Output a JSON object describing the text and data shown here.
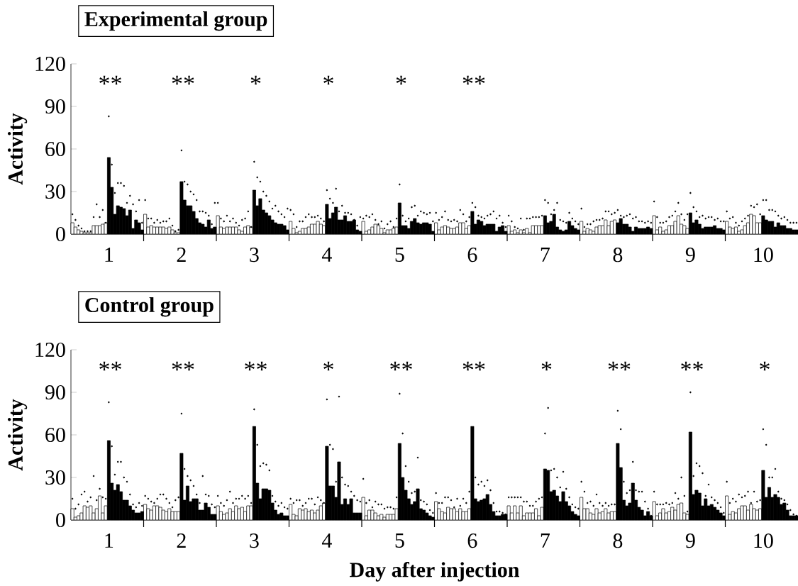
{
  "chart_data": [
    {
      "type": "bar",
      "title": "Experimental group",
      "ylabel": "Activity",
      "categories": [
        null,
        null,
        null,
        null,
        null,
        null,
        null,
        null,
        null,
        null,
        null,
        null,
        "1",
        null,
        null,
        null,
        null,
        null,
        null,
        null,
        null,
        null,
        null,
        null,
        null,
        null,
        null,
        null,
        null,
        null,
        null,
        null,
        null,
        null,
        null,
        null,
        "2",
        null,
        null,
        null,
        null,
        null,
        null,
        null,
        null,
        null,
        null,
        null,
        null,
        null,
        null,
        null,
        null,
        null,
        null,
        null,
        null,
        null,
        null,
        null,
        "3",
        null,
        null,
        null,
        null,
        null,
        null,
        null,
        null,
        null,
        null,
        null,
        null,
        null,
        null,
        null,
        null,
        null,
        null,
        null,
        null,
        null,
        null,
        null,
        "4",
        null,
        null,
        null,
        null,
        null,
        null,
        null,
        null,
        null,
        null,
        null,
        null,
        null,
        null,
        null,
        null,
        null,
        null,
        null,
        null,
        null,
        null,
        null,
        "5",
        null,
        null,
        null,
        null,
        null,
        null,
        null,
        null,
        null,
        null,
        null,
        null,
        null,
        null,
        null,
        null,
        null,
        null,
        null,
        null,
        null,
        null,
        null,
        "6",
        null,
        null,
        null,
        null,
        null,
        null,
        null,
        null,
        null,
        null,
        null,
        null,
        null,
        null,
        null,
        null,
        null,
        null,
        null,
        null,
        null,
        null,
        null,
        "7",
        null,
        null,
        null,
        null,
        null,
        null,
        null,
        null,
        null,
        null,
        null,
        null,
        null,
        null,
        null,
        null,
        null,
        null,
        null,
        null,
        null,
        null,
        null,
        "8",
        null,
        null,
        null,
        null,
        null,
        null,
        null,
        null,
        null,
        null,
        null,
        null,
        null,
        null,
        null,
        null,
        null,
        null,
        null,
        null,
        null,
        null,
        null,
        "9",
        null,
        null,
        null,
        null,
        null,
        null,
        null,
        null,
        null,
        null,
        null,
        null,
        null,
        null,
        null,
        null,
        null,
        null,
        null,
        null,
        null,
        null,
        null,
        "10",
        null,
        null,
        null,
        null,
        null,
        null,
        null,
        null,
        null,
        null,
        null
      ],
      "series": [
        {
          "color": "#ffffff",
          "values": [
            8,
            5,
            3,
            2,
            1,
            1,
            1,
            6,
            6,
            6,
            7,
            8,
            null,
            null,
            null,
            null,
            null,
            null,
            null,
            null,
            null,
            null,
            null,
            null,
            14,
            5,
            6,
            5,
            5,
            5,
            5,
            4,
            5,
            3,
            1,
            1,
            null,
            null,
            null,
            null,
            null,
            null,
            null,
            null,
            null,
            null,
            null,
            null,
            13,
            5,
            4,
            5,
            5,
            5,
            5,
            3,
            2,
            5,
            6,
            5,
            null,
            null,
            null,
            null,
            null,
            null,
            null,
            null,
            null,
            null,
            null,
            null,
            9,
            4,
            1,
            2,
            4,
            4,
            5,
            7,
            7,
            9,
            7,
            6,
            null,
            null,
            null,
            null,
            null,
            null,
            null,
            null,
            null,
            null,
            null,
            null,
            9,
            2,
            3,
            5,
            7,
            6,
            4,
            1,
            3,
            3,
            4,
            5,
            null,
            null,
            null,
            null,
            null,
            null,
            null,
            null,
            null,
            null,
            null,
            null,
            8,
            3,
            5,
            6,
            5,
            4,
            4,
            5,
            8,
            8,
            4,
            6,
            null,
            null,
            null,
            null,
            null,
            null,
            null,
            null,
            null,
            null,
            null,
            null,
            6,
            2,
            3,
            1,
            3,
            1,
            4,
            1,
            6,
            6,
            6,
            6,
            null,
            null,
            null,
            null,
            null,
            null,
            null,
            null,
            null,
            null,
            null,
            null,
            9,
            2,
            4,
            3,
            2,
            5,
            6,
            6,
            10,
            6,
            9,
            10,
            null,
            null,
            null,
            null,
            null,
            null,
            null,
            null,
            null,
            null,
            null,
            null,
            13,
            3,
            5,
            2,
            3,
            6,
            6,
            9,
            13,
            7,
            6,
            4,
            null,
            null,
            null,
            null,
            null,
            null,
            null,
            null,
            null,
            null,
            null,
            null,
            9,
            5,
            4,
            5,
            2,
            3,
            6,
            8,
            14,
            13,
            8,
            8,
            null,
            null,
            null,
            null,
            null,
            null,
            null,
            null,
            null,
            null,
            null,
            null
          ]
        },
        {
          "color": "#000000",
          "values": [
            null,
            null,
            null,
            null,
            null,
            null,
            null,
            null,
            null,
            null,
            null,
            null,
            54,
            33,
            14,
            20,
            19,
            18,
            13,
            17,
            4,
            10,
            8,
            3,
            null,
            null,
            null,
            null,
            null,
            null,
            null,
            null,
            null,
            null,
            null,
            null,
            37,
            24,
            20,
            20,
            16,
            11,
            8,
            7,
            5,
            10,
            4,
            5,
            null,
            null,
            null,
            null,
            null,
            null,
            null,
            null,
            null,
            null,
            null,
            null,
            31,
            20,
            25,
            17,
            15,
            13,
            10,
            8,
            7,
            7,
            6,
            3,
            null,
            null,
            null,
            null,
            null,
            null,
            null,
            null,
            null,
            null,
            null,
            null,
            21,
            11,
            15,
            19,
            10,
            10,
            13,
            9,
            9,
            10,
            3,
            2,
            null,
            null,
            null,
            null,
            null,
            null,
            null,
            null,
            null,
            null,
            null,
            null,
            22,
            6,
            6,
            4,
            9,
            11,
            8,
            7,
            8,
            8,
            7,
            2,
            null,
            null,
            null,
            null,
            null,
            null,
            null,
            null,
            null,
            null,
            null,
            null,
            16,
            7,
            10,
            9,
            6,
            7,
            7,
            7,
            2,
            5,
            6,
            2,
            null,
            null,
            null,
            null,
            null,
            null,
            null,
            null,
            null,
            null,
            null,
            null,
            13,
            8,
            9,
            14,
            5,
            3,
            2,
            3,
            9,
            6,
            4,
            3,
            null,
            null,
            null,
            null,
            null,
            null,
            null,
            null,
            null,
            null,
            null,
            null,
            8,
            11,
            7,
            7,
            5,
            2,
            5,
            4,
            4,
            4,
            5,
            4,
            null,
            null,
            null,
            null,
            null,
            null,
            null,
            null,
            null,
            null,
            null,
            null,
            15,
            8,
            10,
            7,
            4,
            5,
            5,
            5,
            6,
            4,
            4,
            3,
            null,
            null,
            null,
            null,
            null,
            null,
            null,
            null,
            null,
            null,
            null,
            null,
            13,
            10,
            9,
            9,
            5,
            8,
            6,
            6,
            4,
            4,
            3,
            3
          ]
        },
        {
          "type": "scatter",
          "color": "#000000",
          "marker": "circle",
          "values": [
            14,
            10,
            6,
            4,
            2,
            2,
            2,
            12,
            21,
            12,
            17,
            8,
            83,
            49,
            29,
            36,
            36,
            34,
            22,
            27,
            21,
            16,
            24,
            8,
            24,
            11,
            11,
            8,
            10,
            8,
            9,
            9,
            11,
            6,
            2,
            3,
            59,
            37,
            35,
            30,
            28,
            24,
            16,
            16,
            15,
            13,
            7,
            22,
            22,
            11,
            9,
            13,
            9,
            11,
            8,
            6,
            10,
            11,
            16,
            5,
            51,
            40,
            37,
            30,
            27,
            23,
            18,
            20,
            16,
            14,
            12,
            18,
            17,
            14,
            5,
            9,
            9,
            12,
            14,
            12,
            12,
            13,
            11,
            9,
            31,
            25,
            22,
            32,
            16,
            20,
            15,
            15,
            14,
            10,
            6,
            12,
            11,
            13,
            12,
            14,
            10,
            7,
            9,
            4,
            7,
            9,
            5,
            11,
            35,
            13,
            9,
            11,
            19,
            20,
            13,
            16,
            15,
            14,
            15,
            9,
            15,
            10,
            12,
            16,
            10,
            9,
            10,
            9,
            17,
            14,
            9,
            12,
            22,
            19,
            13,
            12,
            11,
            13,
            14,
            16,
            11,
            13,
            8,
            5,
            13,
            9,
            5,
            4,
            11,
            3,
            11,
            11,
            12,
            12,
            12,
            13,
            24,
            22,
            14,
            17,
            22,
            10,
            9,
            8,
            15,
            11,
            9,
            7,
            18,
            5,
            7,
            7,
            9,
            10,
            10,
            11,
            16,
            16,
            14,
            15,
            17,
            13,
            12,
            13,
            14,
            11,
            12,
            9,
            9,
            8,
            9,
            8,
            23,
            12,
            8,
            8,
            9,
            12,
            13,
            16,
            22,
            14,
            10,
            14,
            29,
            19,
            16,
            12,
            13,
            11,
            12,
            12,
            10,
            11,
            9,
            9,
            16,
            11,
            12,
            8,
            6,
            9,
            11,
            13,
            20,
            19,
            21,
            14,
            24,
            24,
            17,
            17,
            16,
            13,
            11,
            12,
            10,
            8,
            8,
            8
          ]
        }
      ],
      "ylim": [
        0,
        120
      ],
      "yticks": [
        0,
        30,
        60,
        90,
        120
      ],
      "annotations": [
        "**",
        "**",
        "*",
        "*",
        "*",
        "**"
      ]
    },
    {
      "type": "bar",
      "title": "Control group",
      "xlabel": "Day after injection",
      "ylabel": "Activity",
      "categories": [
        null,
        null,
        null,
        null,
        null,
        null,
        null,
        null,
        null,
        null,
        null,
        null,
        "1",
        null,
        null,
        null,
        null,
        null,
        null,
        null,
        null,
        null,
        null,
        null,
        null,
        null,
        null,
        null,
        null,
        null,
        null,
        null,
        null,
        null,
        null,
        null,
        "2",
        null,
        null,
        null,
        null,
        null,
        null,
        null,
        null,
        null,
        null,
        null,
        null,
        null,
        null,
        null,
        null,
        null,
        null,
        null,
        null,
        null,
        null,
        null,
        "3",
        null,
        null,
        null,
        null,
        null,
        null,
        null,
        null,
        null,
        null,
        null,
        null,
        null,
        null,
        null,
        null,
        null,
        null,
        null,
        null,
        null,
        null,
        null,
        "4",
        null,
        null,
        null,
        null,
        null,
        null,
        null,
        null,
        null,
        null,
        null,
        null,
        null,
        null,
        null,
        null,
        null,
        null,
        null,
        null,
        null,
        null,
        null,
        "5",
        null,
        null,
        null,
        null,
        null,
        null,
        null,
        null,
        null,
        null,
        null,
        null,
        null,
        null,
        null,
        null,
        null,
        null,
        null,
        null,
        null,
        null,
        null,
        "6",
        null,
        null,
        null,
        null,
        null,
        null,
        null,
        null,
        null,
        null,
        null,
        null,
        null,
        null,
        null,
        null,
        null,
        null,
        null,
        null,
        null,
        null,
        null,
        "7",
        null,
        null,
        null,
        null,
        null,
        null,
        null,
        null,
        null,
        null,
        null,
        null,
        null,
        null,
        null,
        null,
        null,
        null,
        null,
        null,
        null,
        null,
        null,
        "8",
        null,
        null,
        null,
        null,
        null,
        null,
        null,
        null,
        null,
        null,
        null,
        null,
        null,
        null,
        null,
        null,
        null,
        null,
        null,
        null,
        null,
        null,
        null,
        "9",
        null,
        null,
        null,
        null,
        null,
        null,
        null,
        null,
        null,
        null,
        null,
        null,
        null,
        null,
        null,
        null,
        null,
        null,
        null,
        null,
        null,
        null,
        null,
        "10",
        null,
        null,
        null,
        null,
        null,
        null,
        null,
        null,
        null,
        null,
        null
      ],
      "series": [
        {
          "color": "#ffffff",
          "values": [
            8,
            2,
            3,
            5,
            10,
            9,
            10,
            5,
            8,
            17,
            5,
            10,
            null,
            null,
            null,
            null,
            null,
            null,
            null,
            null,
            null,
            null,
            null,
            null,
            11,
            8,
            7,
            10,
            10,
            9,
            7,
            6,
            8,
            6,
            6,
            6,
            null,
            null,
            null,
            null,
            null,
            null,
            null,
            null,
            null,
            null,
            null,
            null,
            10,
            6,
            4,
            5,
            8,
            6,
            10,
            8,
            9,
            6,
            10,
            10,
            null,
            null,
            null,
            null,
            null,
            null,
            null,
            null,
            null,
            null,
            null,
            null,
            11,
            4,
            3,
            8,
            7,
            8,
            6,
            7,
            5,
            7,
            10,
            12,
            null,
            null,
            null,
            null,
            null,
            null,
            null,
            null,
            null,
            null,
            null,
            null,
            16,
            3,
            7,
            7,
            5,
            3,
            4,
            2,
            4,
            4,
            4,
            8,
            null,
            null,
            null,
            null,
            null,
            null,
            null,
            null,
            null,
            null,
            null,
            null,
            13,
            8,
            6,
            5,
            9,
            8,
            8,
            6,
            8,
            6,
            6,
            8,
            null,
            null,
            null,
            null,
            null,
            null,
            null,
            null,
            null,
            null,
            null,
            null,
            10,
            5,
            10,
            5,
            10,
            3,
            5,
            5,
            5,
            8,
            3,
            9,
            null,
            null,
            null,
            null,
            null,
            null,
            null,
            null,
            null,
            null,
            null,
            null,
            16,
            8,
            8,
            5,
            4,
            8,
            5,
            6,
            8,
            5,
            6,
            6,
            null,
            null,
            null,
            null,
            null,
            null,
            null,
            null,
            null,
            null,
            null,
            null,
            13,
            3,
            5,
            8,
            5,
            6,
            9,
            7,
            11,
            12,
            5,
            4,
            null,
            null,
            null,
            null,
            null,
            null,
            null,
            null,
            null,
            null,
            null,
            null,
            17,
            4,
            6,
            5,
            8,
            10,
            10,
            7,
            11,
            8,
            7,
            8,
            null,
            null,
            null,
            null,
            null,
            null,
            null,
            null,
            null,
            null,
            null,
            null
          ]
        },
        {
          "color": "#000000",
          "values": [
            null,
            null,
            null,
            null,
            null,
            null,
            null,
            null,
            null,
            null,
            null,
            null,
            56,
            26,
            21,
            25,
            20,
            14,
            14,
            10,
            7,
            5,
            5,
            6,
            null,
            null,
            null,
            null,
            null,
            null,
            null,
            null,
            null,
            null,
            null,
            null,
            47,
            14,
            24,
            13,
            15,
            15,
            7,
            7,
            12,
            9,
            4,
            4,
            null,
            null,
            null,
            null,
            null,
            null,
            null,
            null,
            null,
            null,
            null,
            null,
            66,
            26,
            15,
            22,
            22,
            21,
            12,
            7,
            4,
            5,
            3,
            3,
            null,
            null,
            null,
            null,
            null,
            null,
            null,
            null,
            null,
            null,
            null,
            null,
            52,
            24,
            24,
            16,
            41,
            11,
            15,
            11,
            15,
            5,
            5,
            5,
            null,
            null,
            null,
            null,
            null,
            null,
            null,
            null,
            null,
            null,
            null,
            null,
            54,
            30,
            21,
            15,
            11,
            13,
            22,
            8,
            7,
            5,
            3,
            2,
            null,
            null,
            null,
            null,
            null,
            null,
            null,
            null,
            null,
            null,
            null,
            null,
            66,
            15,
            13,
            14,
            15,
            18,
            11,
            6,
            3,
            3,
            4,
            4,
            null,
            null,
            null,
            null,
            null,
            null,
            null,
            null,
            null,
            null,
            null,
            null,
            36,
            35,
            20,
            21,
            17,
            13,
            20,
            13,
            10,
            6,
            4,
            3,
            null,
            null,
            null,
            null,
            null,
            null,
            null,
            null,
            null,
            null,
            null,
            null,
            54,
            37,
            14,
            10,
            12,
            26,
            14,
            9,
            7,
            3,
            6,
            3,
            null,
            null,
            null,
            null,
            null,
            null,
            null,
            null,
            null,
            null,
            null,
            null,
            62,
            18,
            21,
            19,
            10,
            15,
            10,
            11,
            9,
            7,
            5,
            3,
            null,
            null,
            null,
            null,
            null,
            null,
            null,
            null,
            null,
            null,
            null,
            null,
            35,
            16,
            23,
            16,
            18,
            16,
            11,
            12,
            7,
            3,
            3,
            3
          ]
        },
        {
          "type": "scatter",
          "color": "#000000",
          "marker": "circle",
          "values": [
            15,
            8,
            11,
            18,
            20,
            13,
            16,
            31,
            14,
            22,
            16,
            15,
            83,
            52,
            32,
            41,
            41,
            30,
            27,
            18,
            11,
            9,
            12,
            10,
            17,
            15,
            13,
            12,
            15,
            18,
            18,
            15,
            12,
            9,
            14,
            16,
            75,
            36,
            31,
            28,
            24,
            18,
            12,
            31,
            18,
            17,
            11,
            9,
            17,
            12,
            10,
            14,
            20,
            12,
            15,
            15,
            17,
            15,
            17,
            12,
            78,
            53,
            38,
            40,
            39,
            35,
            17,
            13,
            10,
            12,
            9,
            8,
            15,
            12,
            14,
            14,
            10,
            12,
            15,
            15,
            11,
            16,
            14,
            12,
            85,
            53,
            50,
            27,
            87,
            30,
            25,
            24,
            20,
            17,
            14,
            13,
            29,
            12,
            14,
            9,
            13,
            11,
            11,
            8,
            9,
            9,
            8,
            16,
            89,
            61,
            38,
            27,
            19,
            20,
            44,
            14,
            13,
            11,
            7,
            5,
            19,
            12,
            12,
            16,
            16,
            14,
            9,
            15,
            10,
            15,
            12,
            20,
            107,
            30,
            25,
            27,
            24,
            28,
            21,
            12,
            6,
            6,
            5,
            4,
            16,
            16,
            16,
            16,
            16,
            13,
            13,
            10,
            10,
            13,
            15,
            16,
            61,
            79,
            35,
            36,
            30,
            23,
            34,
            22,
            16,
            11,
            9,
            8,
            27,
            20,
            12,
            13,
            10,
            18,
            12,
            10,
            12,
            10,
            11,
            11,
            77,
            64,
            27,
            19,
            21,
            41,
            21,
            20,
            20,
            13,
            8,
            3,
            20,
            11,
            11,
            11,
            12,
            11,
            12,
            19,
            15,
            30,
            17,
            6,
            90,
            31,
            40,
            38,
            33,
            17,
            25,
            16,
            14,
            12,
            9,
            5,
            27,
            12,
            15,
            13,
            18,
            16,
            17,
            20,
            12,
            20,
            13,
            14,
            64,
            53,
            30,
            30,
            36,
            20,
            15,
            14,
            11,
            7,
            4,
            3
          ]
        }
      ],
      "ylim": [
        0,
        120
      ],
      "yticks": [
        0,
        30,
        60,
        90,
        120
      ],
      "annotations": [
        "**",
        "**",
        "**",
        "*",
        "**",
        "**",
        "*",
        "**",
        "**",
        "*"
      ]
    }
  ]
}
